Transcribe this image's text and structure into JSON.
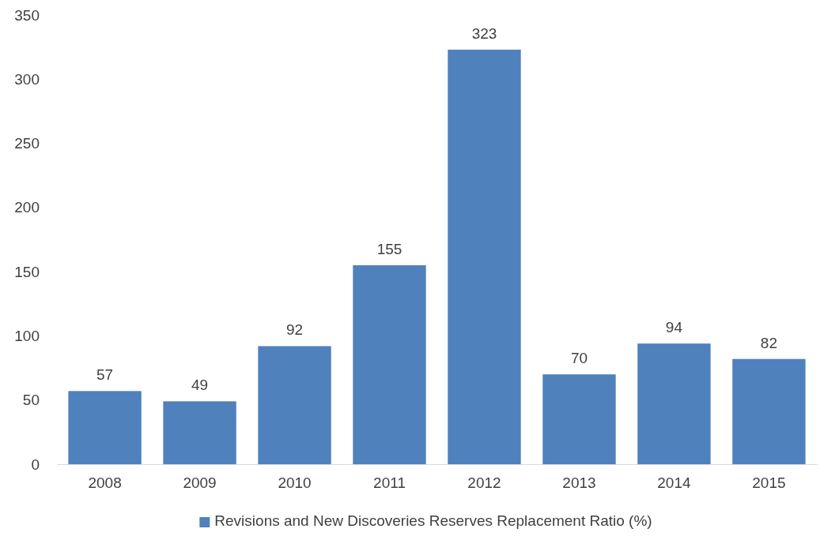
{
  "chart_data": {
    "type": "bar",
    "categories": [
      "2008",
      "2009",
      "2010",
      "2011",
      "2012",
      "2013",
      "2014",
      "2015"
    ],
    "series": [
      {
        "name": "Revisions and New Discoveries Reserves Replacement Ratio (%)",
        "color": "#4f81bd",
        "values": [
          57,
          49,
          92,
          155,
          323,
          70,
          94,
          82
        ]
      }
    ],
    "ylim": [
      0,
      350
    ],
    "yticks": [
      0,
      50,
      100,
      150,
      200,
      250,
      300,
      350
    ],
    "data_labels": true,
    "legend": "bottom",
    "grid": false
  }
}
